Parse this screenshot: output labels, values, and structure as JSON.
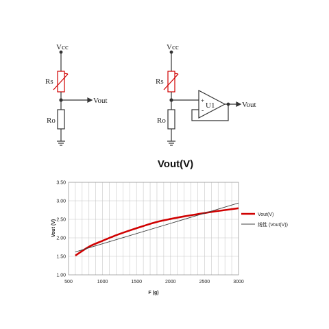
{
  "circuit_left": {
    "vcc": "Vcc",
    "rs": "Rs",
    "vout": "Vout",
    "ro": "Ro"
  },
  "circuit_right": {
    "vcc": "Vcc",
    "rs": "Rs",
    "vout": "Vout",
    "ro": "Ro",
    "opamp": "U1",
    "plus": "+",
    "minus": "-"
  },
  "colors": {
    "vout_series": "#d00000",
    "linear_series": "#404040",
    "resistor_rs": "#d00000",
    "grid": "#c8c8c8"
  },
  "chart_data": {
    "type": "line",
    "title": "Vout(V)",
    "xlabel": "F (g)",
    "ylabel": "Vout (V)",
    "xlim": [
      500,
      3000
    ],
    "ylim": [
      1.0,
      3.5
    ],
    "x_ticks": [
      "500",
      "1000",
      "1500",
      "2000",
      "2500",
      "3000"
    ],
    "y_ticks": [
      "1.00",
      "1.50",
      "2.00",
      "2.50",
      "3.00",
      "3.50"
    ],
    "grid": true,
    "legend_position": "right",
    "series": [
      {
        "name": "Vout(V)",
        "color": "#d00000",
        "x": [
          600,
          800,
          1000,
          1200,
          1400,
          1600,
          1800,
          2000,
          2200,
          2400,
          2600,
          2800,
          3000
        ],
        "y": [
          1.52,
          1.76,
          1.92,
          2.07,
          2.2,
          2.32,
          2.43,
          2.51,
          2.58,
          2.64,
          2.7,
          2.75,
          2.8
        ]
      },
      {
        "name": "线性 (Vout(V))",
        "color": "#404040",
        "x": [
          600,
          3000
        ],
        "y": [
          1.62,
          2.94
        ]
      }
    ]
  }
}
